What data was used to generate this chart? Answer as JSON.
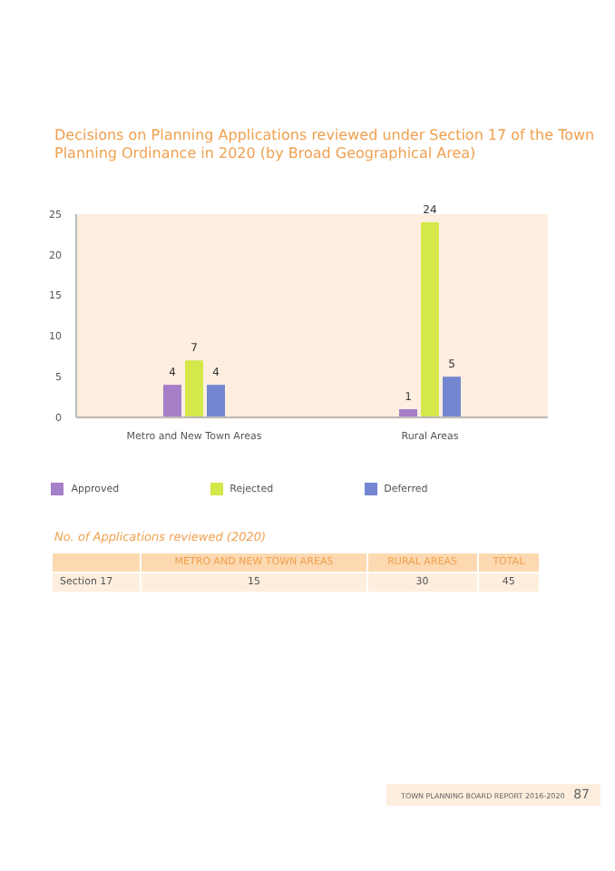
{
  "chart_data": {
    "type": "bar",
    "title": "Decisions on Planning Applications reviewed under Section 17 of the Town Planning Ordinance in 2020 (by Broad Geographical Area)",
    "categories": [
      "Metro and New Town Areas",
      "Rural Areas"
    ],
    "series": [
      {
        "name": "Approved",
        "color": "#a57fc8",
        "values": [
          4,
          1
        ]
      },
      {
        "name": "Rejected",
        "color": "#d4e84a",
        "values": [
          7,
          24
        ]
      },
      {
        "name": "Deferred",
        "color": "#7486d1",
        "values": [
          4,
          5
        ]
      }
    ],
    "ylim": [
      0,
      25
    ],
    "yticks": [
      0,
      5,
      10,
      15,
      20,
      25
    ],
    "grid": false,
    "legend": "bottom",
    "data_labels": true,
    "annotations": [
      "No. of Applications reviewed (2020)",
      "METRO AND NEW TOWN AREAS",
      "RURAL AREAS",
      "TOTAL",
      "Section 17",
      "15",
      "30",
      "45",
      "TOWN PLANNING BOARD REPORT 2016-2020",
      "87"
    ]
  }
}
